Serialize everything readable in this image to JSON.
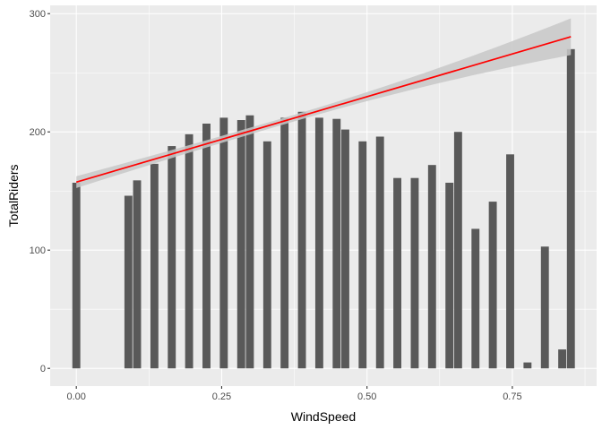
{
  "chart_data": {
    "type": "bar",
    "xlabel": "WindSpeed",
    "ylabel": "TotalRiders",
    "xlim": [
      -0.045,
      0.895
    ],
    "ylim": [
      -15,
      307
    ],
    "x_ticks": [
      0.0,
      0.25,
      0.5,
      0.75
    ],
    "x_tick_labels": [
      "0.00",
      "0.25",
      "0.50",
      "0.75"
    ],
    "y_ticks": [
      0,
      100,
      200,
      300
    ],
    "y_tick_labels": [
      "0",
      "100",
      "200",
      "300"
    ],
    "grid": true,
    "bar_width": 0.0137,
    "bars": [
      {
        "x": 0.0,
        "y": 157
      },
      {
        "x": 0.0896,
        "y": 146
      },
      {
        "x": 0.1045,
        "y": 159
      },
      {
        "x": 0.1343,
        "y": 173
      },
      {
        "x": 0.1642,
        "y": 188
      },
      {
        "x": 0.194,
        "y": 198
      },
      {
        "x": 0.2239,
        "y": 207
      },
      {
        "x": 0.2537,
        "y": 212
      },
      {
        "x": 0.2836,
        "y": 210
      },
      {
        "x": 0.2985,
        "y": 214
      },
      {
        "x": 0.3284,
        "y": 192
      },
      {
        "x": 0.3582,
        "y": 212
      },
      {
        "x": 0.3881,
        "y": 217
      },
      {
        "x": 0.4179,
        "y": 212
      },
      {
        "x": 0.4478,
        "y": 211
      },
      {
        "x": 0.4627,
        "y": 202
      },
      {
        "x": 0.4925,
        "y": 192
      },
      {
        "x": 0.5224,
        "y": 196
      },
      {
        "x": 0.5522,
        "y": 161
      },
      {
        "x": 0.5821,
        "y": 161
      },
      {
        "x": 0.6119,
        "y": 172
      },
      {
        "x": 0.6418,
        "y": 157
      },
      {
        "x": 0.6567,
        "y": 200
      },
      {
        "x": 0.6866,
        "y": 118
      },
      {
        "x": 0.7164,
        "y": 141
      },
      {
        "x": 0.7463,
        "y": 181
      },
      {
        "x": 0.7761,
        "y": 5
      },
      {
        "x": 0.806,
        "y": 103
      },
      {
        "x": 0.8358,
        "y": 16
      },
      {
        "x": 0.8507,
        "y": 270
      }
    ],
    "smooth_line": {
      "method": "lm",
      "color": "#ff0000",
      "band_color": "#c8c8c8",
      "x": [
        0.0,
        0.8507
      ],
      "y": [
        157.5,
        280.5
      ],
      "lower": [
        152.5,
        265
      ],
      "upper": [
        162.5,
        296
      ]
    },
    "colors": {
      "panel": "#ebebeb",
      "grid_major": "#ffffff",
      "bar": "#595959"
    }
  }
}
